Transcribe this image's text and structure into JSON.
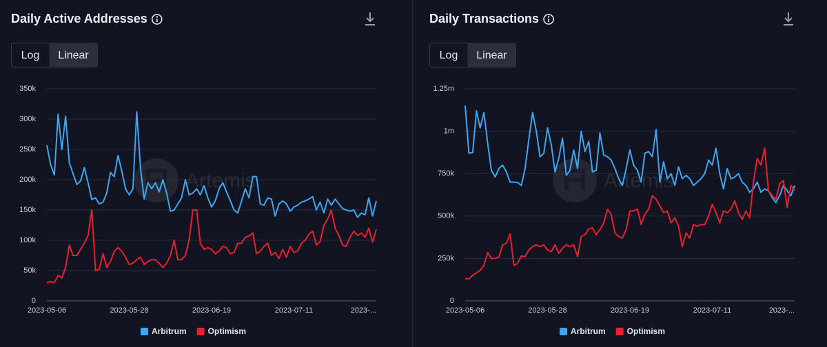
{
  "chart_data": [
    {
      "type": "line",
      "title": "Daily Active Addresses",
      "buttons": [
        "Log",
        "Linear"
      ],
      "log_scale": false,
      "watermark": "Artemis",
      "grid": true,
      "categories": [
        "2023-05-06",
        null,
        null,
        null,
        null,
        null,
        null,
        null,
        null,
        null,
        null,
        null,
        null,
        null,
        null,
        null,
        null,
        null,
        null,
        null,
        null,
        null,
        "2023-05-28",
        null,
        null,
        null,
        null,
        null,
        null,
        null,
        null,
        null,
        null,
        null,
        null,
        null,
        null,
        null,
        null,
        null,
        null,
        null,
        null,
        null,
        "2023-06-19",
        null,
        null,
        null,
        null,
        null,
        null,
        null,
        null,
        null,
        null,
        null,
        null,
        null,
        null,
        null,
        null,
        null,
        null,
        null,
        null,
        null,
        "2023-07-11",
        null,
        null,
        null,
        null,
        null,
        null,
        null,
        null,
        null,
        null,
        null,
        null,
        null,
        null,
        null,
        null,
        null,
        null,
        null,
        null,
        null,
        "2023-..."
      ],
      "series": [
        {
          "name": "Arbitrum",
          "color": "#3ea6f0",
          "values": [
            257000,
            225000,
            208000,
            308000,
            250000,
            305000,
            228000,
            210000,
            192000,
            198000,
            220000,
            195000,
            167000,
            170000,
            160000,
            163000,
            178000,
            212000,
            205000,
            240000,
            215000,
            185000,
            175000,
            185000,
            312000,
            220000,
            168000,
            195000,
            185000,
            195000,
            180000,
            200000,
            178000,
            148000,
            150000,
            160000,
            170000,
            200000,
            175000,
            178000,
            185000,
            175000,
            190000,
            170000,
            155000,
            165000,
            185000,
            195000,
            180000,
            165000,
            150000,
            145000,
            165000,
            185000,
            170000,
            205000,
            205000,
            160000,
            158000,
            170000,
            168000,
            140000,
            160000,
            165000,
            160000,
            148000,
            155000,
            158000,
            163000,
            165000,
            168000,
            172000,
            150000,
            163000,
            145000,
            168000,
            158000,
            168000,
            160000,
            152000,
            150000,
            148000,
            150000,
            138000,
            145000,
            142000,
            170000,
            140000,
            165000
          ]
        },
        {
          "name": "Optimism",
          "color": "#e8202f",
          "values": [
            30000,
            32000,
            30000,
            42000,
            38000,
            55000,
            92000,
            75000,
            75000,
            85000,
            95000,
            108000,
            150000,
            50000,
            52000,
            78000,
            55000,
            65000,
            82000,
            88000,
            82000,
            72000,
            60000,
            62000,
            68000,
            72000,
            60000,
            65000,
            68000,
            68000,
            62000,
            55000,
            62000,
            75000,
            100000,
            68000,
            68000,
            75000,
            100000,
            150000,
            150000,
            95000,
            85000,
            88000,
            85000,
            78000,
            82000,
            90000,
            88000,
            78000,
            80000,
            95000,
            95000,
            105000,
            107000,
            112000,
            78000,
            82000,
            90000,
            95000,
            75000,
            80000,
            70000,
            85000,
            72000,
            90000,
            80000,
            82000,
            95000,
            100000,
            110000,
            115000,
            92000,
            98000,
            125000,
            135000,
            150000,
            120000,
            108000,
            92000,
            90000,
            105000,
            115000,
            108000,
            112000,
            105000,
            120000,
            97000,
            118000
          ]
        }
      ],
      "ylim": [
        0,
        350000
      ],
      "yticks": [
        0,
        {
          "value": 50000,
          "label": "50k"
        },
        {
          "value": 100000,
          "label": "100k"
        },
        {
          "value": 150000,
          "label": "150k"
        },
        {
          "value": 200000,
          "label": "200k"
        },
        {
          "value": 250000,
          "label": "250k"
        },
        {
          "value": 300000,
          "label": "300k"
        },
        {
          "value": 350000,
          "label": "350k"
        }
      ]
    },
    {
      "type": "line",
      "title": "Daily Transactions",
      "buttons": [
        "Log",
        "Linear"
      ],
      "log_scale": false,
      "watermark": "Artemis",
      "grid": true,
      "categories": [
        "2023-05-06",
        null,
        null,
        null,
        null,
        null,
        null,
        null,
        null,
        null,
        null,
        null,
        null,
        null,
        null,
        null,
        null,
        null,
        null,
        null,
        null,
        null,
        "2023-05-28",
        null,
        null,
        null,
        null,
        null,
        null,
        null,
        null,
        null,
        null,
        null,
        null,
        null,
        null,
        null,
        null,
        null,
        null,
        null,
        null,
        null,
        "2023-06-19",
        null,
        null,
        null,
        null,
        null,
        null,
        null,
        null,
        null,
        null,
        null,
        null,
        null,
        null,
        null,
        null,
        null,
        null,
        null,
        null,
        null,
        "2023-07-11",
        null,
        null,
        null,
        null,
        null,
        null,
        null,
        null,
        null,
        null,
        null,
        null,
        null,
        null,
        null,
        null,
        null,
        null,
        null,
        null,
        null,
        "2023-..."
      ],
      "series": [
        {
          "name": "Arbitrum",
          "color": "#3ea6f0",
          "values": [
            1150000,
            870000,
            875000,
            1120000,
            1020000,
            1110000,
            930000,
            770000,
            730000,
            780000,
            800000,
            760000,
            700000,
            700000,
            698000,
            680000,
            780000,
            950000,
            1110000,
            1000000,
            850000,
            870000,
            1020000,
            920000,
            760000,
            840000,
            960000,
            740000,
            770000,
            890000,
            780000,
            1000000,
            880000,
            940000,
            760000,
            770000,
            990000,
            860000,
            850000,
            830000,
            780000,
            720000,
            680000,
            780000,
            890000,
            800000,
            770000,
            700000,
            870000,
            880000,
            850000,
            1010000,
            700000,
            820000,
            720000,
            750000,
            680000,
            790000,
            720000,
            740000,
            720000,
            680000,
            700000,
            720000,
            750000,
            830000,
            800000,
            900000,
            750000,
            660000,
            780000,
            720000,
            730000,
            750000,
            700000,
            680000,
            640000,
            660000,
            700000,
            640000,
            660000,
            650000,
            610000,
            580000,
            620000,
            680000,
            650000,
            620000,
            680000
          ]
        },
        {
          "name": "Optimism",
          "color": "#e8202f",
          "values": [
            130000,
            130000,
            150000,
            165000,
            180000,
            210000,
            285000,
            250000,
            250000,
            260000,
            330000,
            340000,
            395000,
            210000,
            220000,
            265000,
            260000,
            300000,
            320000,
            330000,
            320000,
            330000,
            300000,
            290000,
            330000,
            280000,
            310000,
            330000,
            320000,
            330000,
            260000,
            380000,
            390000,
            425000,
            430000,
            390000,
            420000,
            460000,
            540000,
            510000,
            400000,
            380000,
            370000,
            420000,
            530000,
            530000,
            540000,
            450000,
            510000,
            540000,
            620000,
            600000,
            560000,
            520000,
            530000,
            460000,
            490000,
            440000,
            320000,
            400000,
            370000,
            450000,
            440000,
            450000,
            450000,
            500000,
            570000,
            520000,
            460000,
            530000,
            520000,
            540000,
            590000,
            520000,
            480000,
            530000,
            490000,
            700000,
            840000,
            800000,
            900000,
            650000,
            620000,
            600000,
            690000,
            710000,
            550000,
            680000,
            650000
          ]
        }
      ],
      "ylim": [
        0,
        1250000
      ],
      "yticks": [
        0,
        {
          "value": 250000,
          "label": "250k"
        },
        {
          "value": 500000,
          "label": "500k"
        },
        {
          "value": 750000,
          "label": "750k"
        },
        {
          "value": 1000000,
          "label": "1m"
        },
        {
          "value": 1250000,
          "label": "1.25m"
        }
      ]
    }
  ]
}
